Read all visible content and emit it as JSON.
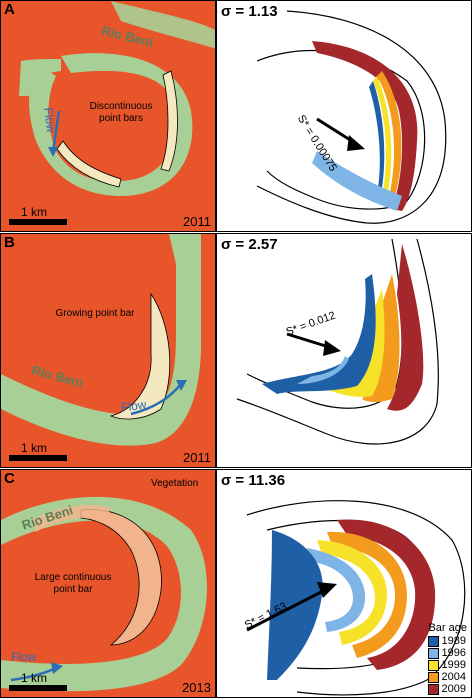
{
  "panels": [
    {
      "letter": "A",
      "sigma": "σ = 1.13",
      "year": "2011",
      "scale": "1 km",
      "river": "Rio Beni",
      "flow": "Flow",
      "annotation": "Discontinuous point bars",
      "slope": "S* = 0.00075"
    },
    {
      "letter": "B",
      "sigma": "σ = 2.57",
      "year": "2011",
      "scale": "1 km",
      "river": "Rio Beni",
      "flow": "Flow",
      "annotation": "Growing point bar",
      "slope": "S* = 0.012"
    },
    {
      "letter": "C",
      "sigma": "σ = 11.36",
      "year": "2013",
      "scale": "1 km",
      "river": "Rio Beni",
      "flow": "Flow",
      "annotation": "Large continuous point bar",
      "vegetation": "Vegetation",
      "slope": "S* = 1.63"
    }
  ],
  "legend": {
    "title": "Bar age",
    "items": [
      {
        "year": "1989",
        "color": "#1f5fa6"
      },
      {
        "year": "1996",
        "color": "#7fb5e6"
      },
      {
        "year": "1999",
        "color": "#f7e22a"
      },
      {
        "year": "2004",
        "color": "#f29b1d"
      },
      {
        "year": "2009",
        "color": "#a3272b"
      }
    ]
  },
  "colors": {
    "floodplain": "#e8552a",
    "river": "#a8cf95",
    "bar": "#f4e8c0"
  }
}
